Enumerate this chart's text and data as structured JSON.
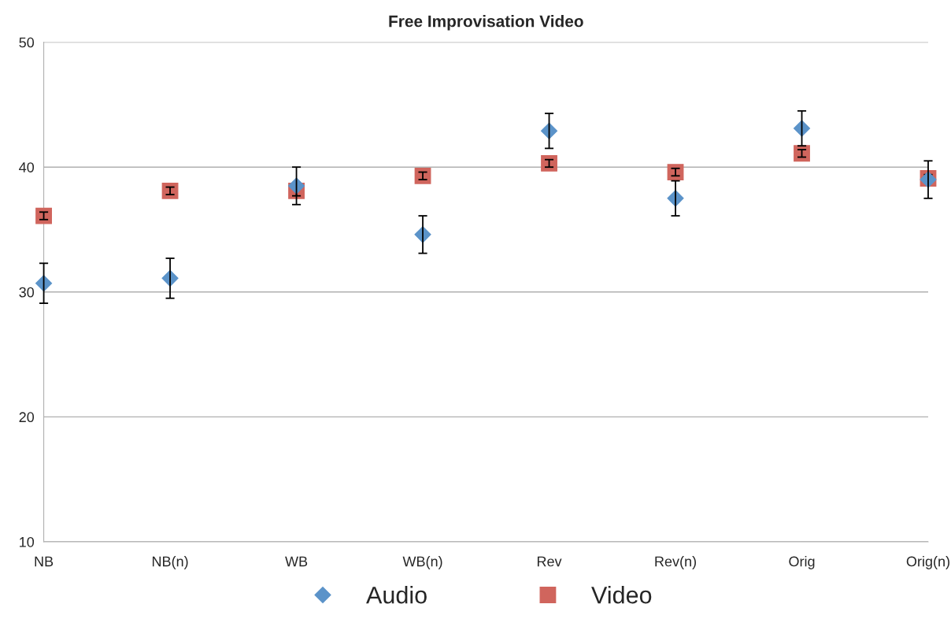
{
  "chart_data": {
    "type": "scatter",
    "title": "Free Improvisation Video",
    "categories": [
      "NB",
      "NB(n)",
      "WB",
      "WB(n)",
      "Rev",
      "Rev(n)",
      "Orig",
      "Orig(n)"
    ],
    "series": [
      {
        "name": "Audio",
        "color": "#5b93c9",
        "marker": "diamond",
        "values": [
          30.7,
          31.1,
          38.5,
          34.6,
          42.9,
          37.5,
          43.1,
          39.0
        ],
        "errors": [
          1.6,
          1.6,
          1.5,
          1.5,
          1.4,
          1.4,
          1.4,
          1.5
        ]
      },
      {
        "name": "Video",
        "color": "#d0655d",
        "marker": "square",
        "values": [
          36.1,
          38.1,
          38.1,
          39.3,
          40.3,
          39.6,
          41.1,
          39.1
        ],
        "errors": [
          0.3,
          0.3,
          0.4,
          0.3,
          0.3,
          0.3,
          0.3,
          0.3
        ]
      }
    ],
    "ylim": [
      10,
      50
    ],
    "yticks": [
      10,
      20,
      30,
      40,
      50
    ],
    "grid": "y",
    "legend": "bottom"
  }
}
